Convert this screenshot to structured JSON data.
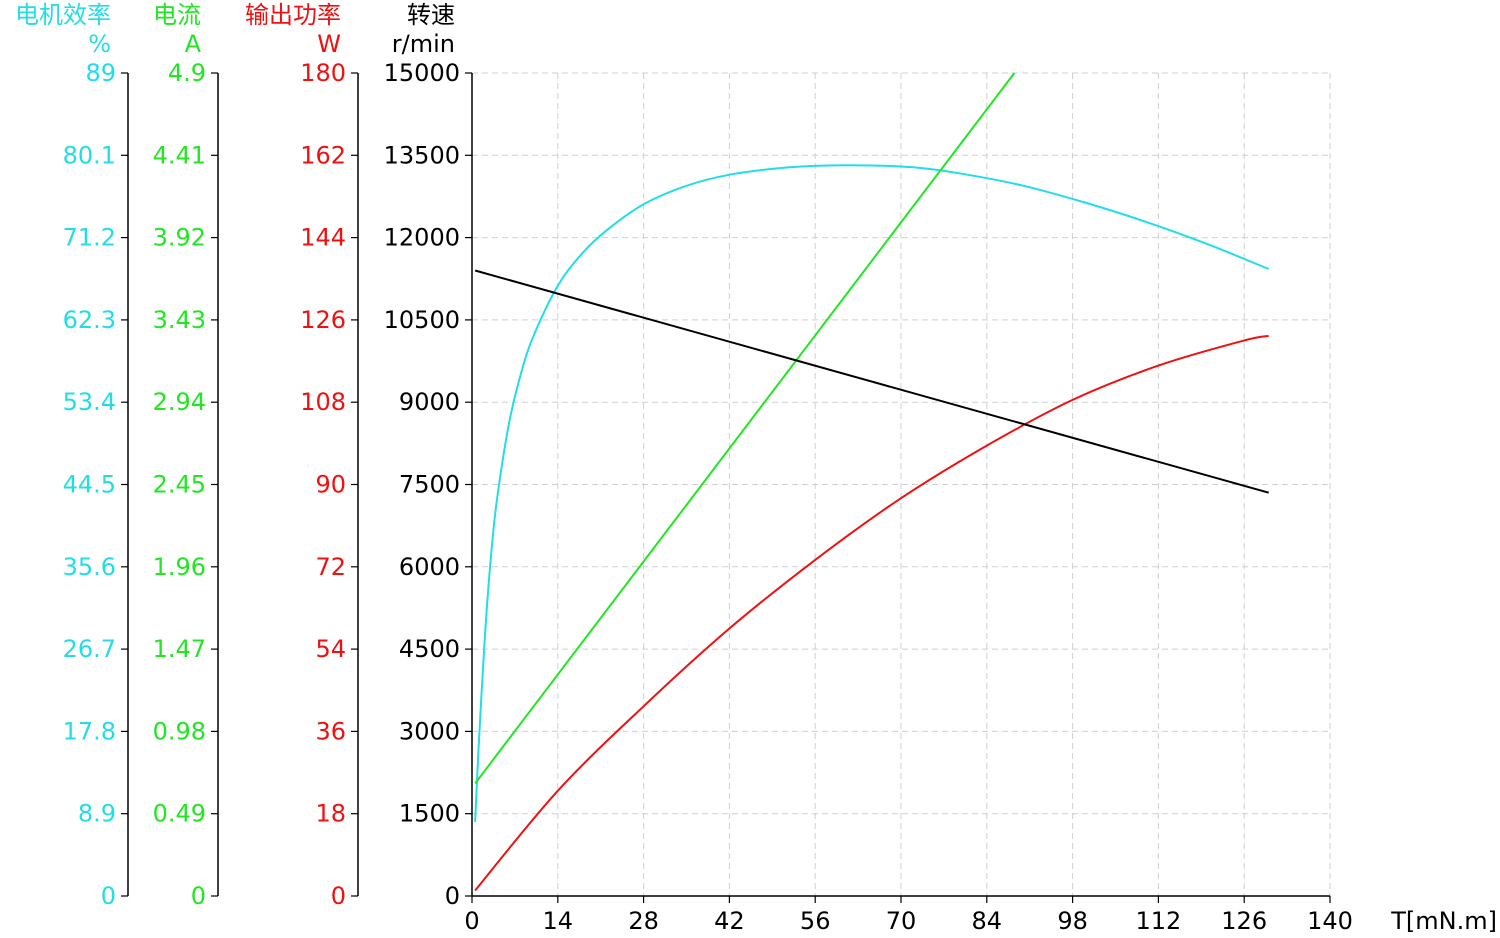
{
  "chart_data": {
    "type": "line",
    "xlabel": "T[mN.m]",
    "xlim": [
      0,
      140
    ],
    "x_ticks": [
      "0",
      "14",
      "28",
      "42",
      "56",
      "70",
      "84",
      "98",
      "112",
      "126",
      "140"
    ],
    "grid": true,
    "axes": [
      {
        "id": "efficiency",
        "title": "电机效率",
        "unit": "%",
        "color": "#22dde8",
        "range": [
          0,
          89
        ],
        "ticks": [
          "0",
          "8.9",
          "17.8",
          "26.7",
          "35.6",
          "44.5",
          "53.4",
          "62.3",
          "71.2",
          "80.1",
          "89"
        ]
      },
      {
        "id": "current",
        "title": "电流",
        "unit": "A",
        "color": "#22e622",
        "range": [
          0,
          4.9
        ],
        "ticks": [
          "0",
          "0.49",
          "0.98",
          "1.47",
          "1.96",
          "2.45",
          "2.94",
          "3.43",
          "3.92",
          "4.41",
          "4.9"
        ]
      },
      {
        "id": "power",
        "title": "输出功率",
        "unit": "W",
        "color": "#ee1111",
        "range": [
          0,
          180
        ],
        "ticks": [
          "0",
          "18",
          "36",
          "54",
          "72",
          "90",
          "108",
          "126",
          "144",
          "162",
          "180"
        ]
      },
      {
        "id": "speed",
        "title": "转速",
        "unit": "r/min",
        "color": "#000000",
        "range": [
          0,
          15000
        ],
        "ticks": [
          "0",
          "1500",
          "3000",
          "4500",
          "6000",
          "7500",
          "9000",
          "10500",
          "12000",
          "13500",
          "15000"
        ]
      }
    ],
    "series": [
      {
        "axis": "efficiency",
        "color": "#22dde8",
        "x": [
          0.5,
          1,
          2,
          3,
          4,
          6,
          8,
          10,
          14,
          18,
          22,
          28,
          35,
          42,
          50,
          58,
          65,
          72,
          80,
          90,
          100,
          110,
          120,
          130
        ],
        "y": [
          8,
          15,
          27,
          36,
          42.5,
          51,
          56.5,
          60.5,
          66,
          69.5,
          72,
          74.8,
          76.8,
          78,
          78.7,
          79,
          79,
          78.8,
          78.1,
          76.8,
          75,
          72.9,
          70.5,
          67.8
        ]
      },
      {
        "axis": "current",
        "color": "#22e622",
        "x": [
          0.5,
          88.5
        ],
        "y": [
          0.67,
          4.9
        ]
      },
      {
        "axis": "power",
        "color": "#ee1111",
        "x": [
          0.5,
          14,
          28,
          42,
          56,
          70,
          84,
          98,
          112,
          126,
          130
        ],
        "y": [
          1.2,
          23,
          41.5,
          58.5,
          73.5,
          87,
          98.5,
          108.5,
          116,
          121.5,
          122.5
        ]
      },
      {
        "axis": "speed",
        "color": "#000000",
        "x": [
          0.5,
          130
        ],
        "y": [
          11400,
          7350
        ]
      }
    ]
  }
}
